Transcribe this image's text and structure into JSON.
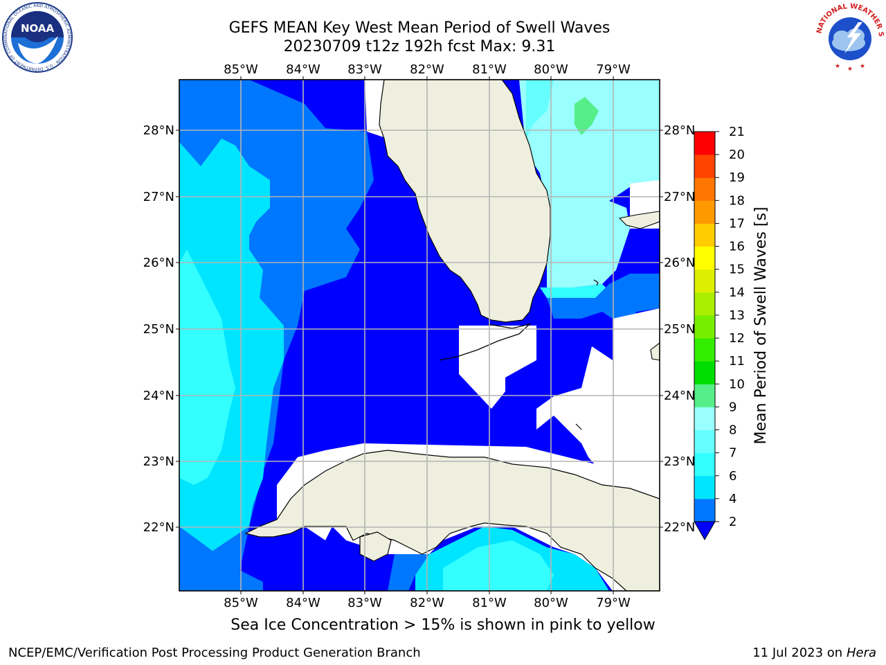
{
  "header": {
    "title_line1": "GEFS MEAN Key West Mean Period of Swell Waves",
    "title_line2": "20230709 t12z 192h fcst   Max: 9.31"
  },
  "logos": {
    "left": "NOAA",
    "left_ring": "NATIONAL OCEANIC AND ATMOSPHERIC ADMINISTRATION · U.S. DEPARTMENT OF COMMERCE",
    "right_ring": "NATIONAL WEATHER SERVICE"
  },
  "map": {
    "lon_ticks": [
      "85°W",
      "84°W",
      "83°W",
      "82°W",
      "81°W",
      "80°W",
      "79°W"
    ],
    "lat_ticks": [
      "28°N",
      "27°N",
      "26°N",
      "25°N",
      "24°N",
      "23°N",
      "22°N"
    ],
    "region": "Florida Straits / Key West",
    "land_color": "#efefdf",
    "coast_color": "#000000",
    "grid_color": "#b4b4b4"
  },
  "colorbar": {
    "label": "Mean Period of Swell Waves [s]",
    "ticks": [
      "2",
      "4",
      "6",
      "7",
      "8",
      "9",
      "10",
      "11",
      "12",
      "13",
      "14",
      "15",
      "16",
      "17",
      "18",
      "19",
      "20",
      "21"
    ],
    "colors": [
      "#0000ff",
      "#0077ff",
      "#00e5ff",
      "#33ffff",
      "#66ffff",
      "#99ffff",
      "#55ee88",
      "#00dd00",
      "#33ee00",
      "#77ee00",
      "#aaee00",
      "#ddee00",
      "#ffff00",
      "#ffcc00",
      "#ff9900",
      "#ff7700",
      "#ff4400",
      "#ff0000"
    ]
  },
  "note": "Sea Ice Concentration > 15% is shown in pink to yellow",
  "footer": {
    "left": "NCEP/EMC/Verification Post Processing Product Generation Branch",
    "date": "11 Jul 2023 on ",
    "machine": "Hera"
  }
}
